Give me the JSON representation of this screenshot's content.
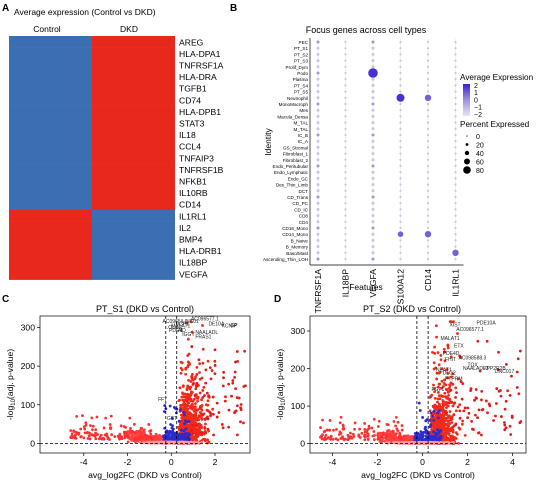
{
  "panels": {
    "A": {
      "letter": "A",
      "title": "Average expression (Control vs DKD)",
      "columns": [
        "Control",
        "DKD"
      ],
      "genes": [
        "AREG",
        "HLA-DPA1",
        "TNFRSF1A",
        "HLA-DRA",
        "TGFB1",
        "CD74",
        "HLA-DPB1",
        "STAT3",
        "IL18",
        "CCL4",
        "TNFAIP3",
        "TNFRSF1B",
        "NFKB1",
        "IL10RB",
        "CD14",
        "IL1RL1",
        "IL2",
        "BMP4",
        "HLA-DRB1",
        "IL18BP",
        "VEGFA"
      ],
      "colors": {
        "low": "#3a6fb4",
        "high": "#e8281c"
      }
    },
    "B": {
      "letter": "B",
      "title": "Focus genes across cell types",
      "xlabel": "Features",
      "ylabel": "Identity",
      "features": [
        "TNFRSF1A",
        "IL18BP",
        "VEGFA",
        "S100A12",
        "CD14",
        "IL1RL1"
      ],
      "identities": [
        "PEC",
        "PT_S1",
        "PT_S2",
        "PT_S3",
        "Prolif_Dym",
        "Podo",
        "Plasma",
        "PT_S4",
        "PT_S5",
        "Neutrophil",
        "MonoMacroph",
        "Mes",
        "Macula_Densa",
        "M_TAL",
        "M_TAL",
        "IC_B",
        "IC_A",
        "GS_Stromal",
        "Fibroblast_1",
        "Fibroblast_2",
        "Endo_Peritubular",
        "Endo_Lymphatic",
        "Endo_GC",
        "Des_Thin_Limb",
        "DCT",
        "CD_Trans",
        "CD_PC",
        "CD_IC",
        "CD8",
        "CD4",
        "CD16_Mono",
        "CD14_Mono",
        "B_Naive",
        "B_Memory",
        "Baso/Mast",
        "Ascending_Thin_LOH"
      ],
      "legend_expr_title": "Average Expression",
      "legend_expr_ticks": [
        "2",
        "1",
        "0",
        "−1",
        "−2"
      ],
      "legend_pct_title": "Percent Expressed",
      "legend_pct_ticks": [
        "0",
        "20",
        "40",
        "60",
        "80"
      ]
    },
    "C": {
      "letter": "C",
      "title": "PT_S1 (DKD vs Control)",
      "xlabel": "avg_log2FC (DKD vs Control)",
      "ylabel_main": "-log",
      "ylabel_sub": "10",
      "ylabel_rest": "(adj. p-value)",
      "xticks": [
        "-4",
        "-2",
        "0",
        "2"
      ],
      "yticks": [
        "0",
        "100",
        "200",
        "300"
      ],
      "labels": [
        "AC0965|LINC01",
        ".OLG2",
        "MALAT1",
        "DCP1",
        "AC096577.1",
        "DE10A",
        "GP",
        "PDE4D",
        "AL",
        "NAALADL",
        "KCNIP",
        "IGGY",
        "FRAS1",
        "FFT",
        "GST",
        "TE"
      ]
    },
    "D": {
      "letter": "D",
      "title": "PT_S2 (DKD vs Control)",
      "xlabel": "avg_log2FC (DKD vs Control)",
      "ylabel_main": "-log",
      "ylabel_sub": "10",
      "ylabel_rest": "(adj. p-value)",
      "xticks": [
        "-4",
        "-2",
        "0",
        "2",
        "4"
      ],
      "yticks": [
        "0",
        "100",
        "200",
        "300"
      ],
      "labels": [
        "PDE10A",
        "XIST",
        "AC096577.1",
        "MALAT1",
        "ETX",
        "PDE4D",
        "AC098588.3",
        "FHIT",
        "TOX",
        "NAALADL2",
        "NEAT1",
        "DLG2",
        "PTPRM",
        "PPP2R2B",
        "LINC017",
        "FGF1"
      ]
    }
  },
  "chart_data": [
    {
      "type": "heatmap",
      "title": "Average expression (Control vs DKD)",
      "rows": [
        "AREG",
        "HLA-DPA1",
        "TNFRSF1A",
        "HLA-DRA",
        "TGFB1",
        "CD74",
        "HLA-DPB1",
        "STAT3",
        "IL18",
        "CCL4",
        "TNFAIP3",
        "TNFRSF1B",
        "NFKB1",
        "IL10RB",
        "CD14",
        "IL1RL1",
        "IL2",
        "BMP4",
        "HLA-DRB1",
        "IL18BP",
        "VEGFA"
      ],
      "columns": [
        "Control",
        "DKD"
      ],
      "values": [
        [
          -1,
          1
        ],
        [
          -1,
          1
        ],
        [
          -1,
          1
        ],
        [
          -1,
          1
        ],
        [
          -1,
          1
        ],
        [
          -1,
          1
        ],
        [
          -1,
          1
        ],
        [
          -1,
          1
        ],
        [
          -1,
          1
        ],
        [
          -1,
          1
        ],
        [
          -1,
          1
        ],
        [
          -1,
          1
        ],
        [
          -1,
          1
        ],
        [
          -1,
          1
        ],
        [
          -1,
          1
        ],
        [
          1,
          -1
        ],
        [
          1,
          -1
        ],
        [
          1,
          -1
        ],
        [
          1,
          -1
        ],
        [
          1,
          -1
        ],
        [
          1,
          -1
        ]
      ]
    },
    {
      "type": "scatter",
      "title": "Focus genes across cell types",
      "xlabel": "Features",
      "ylabel": "Identity",
      "note": "dot plot",
      "strong_points": [
        {
          "feature": "VEGFA",
          "identity": "Podo",
          "pct": 80,
          "expr": 2
        },
        {
          "feature": "S100A12",
          "identity": "Neutrophil",
          "pct": 60,
          "expr": 2
        },
        {
          "feature": "CD14",
          "identity": "Neutrophil",
          "pct": 40,
          "expr": 1.5
        },
        {
          "feature": "CD14",
          "identity": "CD14_Mono",
          "pct": 40,
          "expr": 1.5
        },
        {
          "feature": "IL1RL1",
          "identity": "Baso/Mast",
          "pct": 40,
          "expr": 1.5
        },
        {
          "feature": "S100A12",
          "identity": "CD14_Mono",
          "pct": 30,
          "expr": 1
        }
      ]
    },
    {
      "type": "scatter",
      "title": "PT_S1 (DKD vs Control)",
      "xlabel": "avg_log2FC (DKD vs Control)",
      "ylabel": "-log10(adj. p-value)",
      "xlim": [
        -6,
        3.6
      ],
      "ylim": [
        -25,
        330
      ],
      "thresholds": {
        "x": [
          -0.25,
          0.25
        ],
        "y": 0
      }
    },
    {
      "type": "scatter",
      "title": "PT_S2 (DKD vs Control)",
      "xlabel": "avg_log2FC (DKD vs Control)",
      "ylabel": "-log10(adj. p-value)",
      "xlim": [
        -5,
        4.6
      ],
      "ylim": [
        -25,
        340
      ],
      "thresholds": {
        "x": [
          -0.25,
          0.25
        ],
        "y": 0
      }
    }
  ]
}
